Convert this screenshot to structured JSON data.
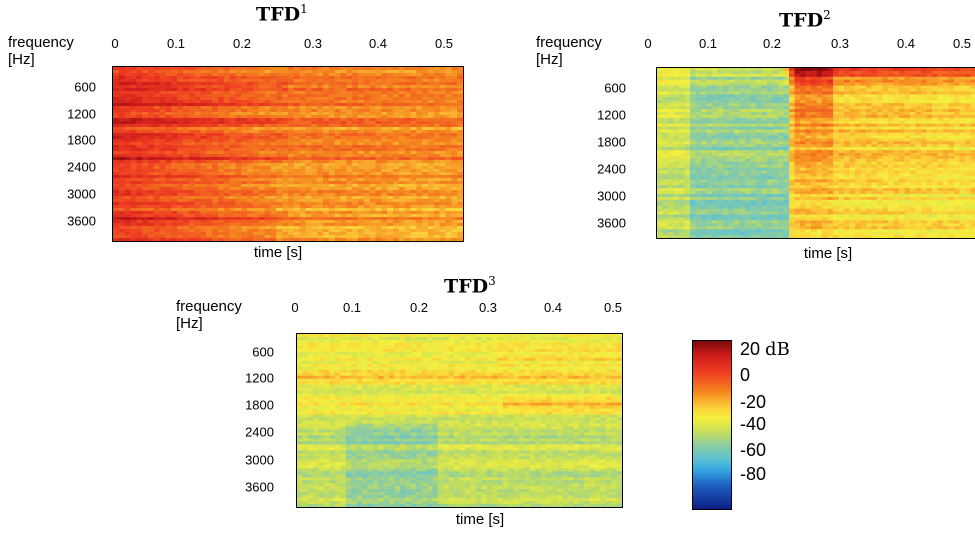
{
  "chart_data": [
    {
      "type": "heatmap",
      "title": "TFD",
      "title_sup": "1",
      "xlabel": "time [s]",
      "ylabel_line1": "frequency",
      "ylabel_line2": "[Hz]",
      "x_ticks": [
        "0",
        "0.1",
        "0.2",
        "0.3",
        "0.4",
        "0.5"
      ],
      "y_ticks": [
        "600",
        "1200",
        "1800",
        "2400",
        "3000",
        "3600"
      ],
      "xlim": [
        0,
        0.53
      ],
      "ylim": [
        0,
        4000
      ],
      "colorscale_db": [
        -90,
        25
      ]
    },
    {
      "type": "heatmap",
      "title": "TFD",
      "title_sup": "2",
      "xlabel": "time [s]",
      "ylabel_line1": "frequency",
      "ylabel_line2": "[Hz]",
      "x_ticks": [
        "0",
        "0.1",
        "0.2",
        "0.3",
        "0.4",
        "0.5"
      ],
      "y_ticks": [
        "600",
        "1200",
        "1800",
        "2400",
        "3000",
        "3600"
      ],
      "xlim": [
        0,
        0.53
      ],
      "ylim": [
        0,
        4000
      ],
      "colorscale_db": [
        -90,
        25
      ]
    },
    {
      "type": "heatmap",
      "title": "TFD",
      "title_sup": "3",
      "xlabel": "time [s]",
      "ylabel_line1": "frequency",
      "ylabel_line2": "[Hz]",
      "x_ticks": [
        "0",
        "0.1",
        "0.2",
        "0.3",
        "0.4",
        "0.5"
      ],
      "y_ticks": [
        "600",
        "1200",
        "1800",
        "2400",
        "3000",
        "3600"
      ],
      "xlim": [
        0,
        0.53
      ],
      "ylim": [
        0,
        4000
      ],
      "colorscale_db": [
        -90,
        25
      ]
    }
  ],
  "colorbar": {
    "labels": [
      "20",
      "0",
      "-20",
      "-40",
      "-60",
      "-80"
    ],
    "unit": "dB",
    "range_db": [
      -90,
      25
    ]
  }
}
